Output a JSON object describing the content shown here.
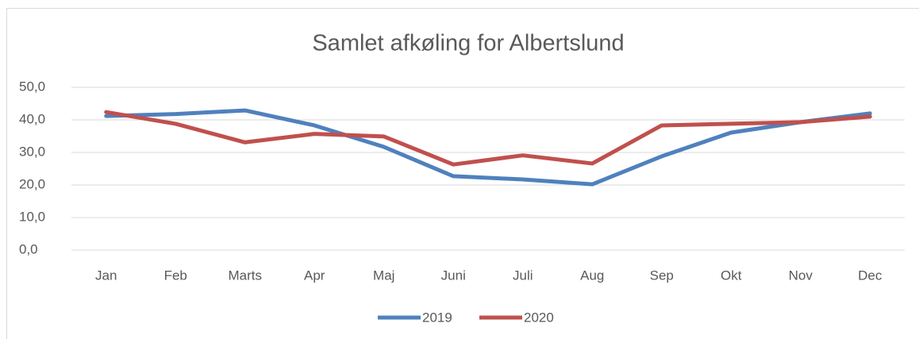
{
  "chart_data": {
    "type": "line",
    "title": "Samlet afkøling for Albertslund",
    "categories": [
      "Jan",
      "Feb",
      "Marts",
      "Apr",
      "Maj",
      "Juni",
      "Juli",
      "Aug",
      "Sep",
      "Okt",
      "Nov",
      "Dec"
    ],
    "series": [
      {
        "name": "2019",
        "color": "#4f81bd",
        "values": [
          41.2,
          41.8,
          42.9,
          38.3,
          31.7,
          22.7,
          21.7,
          20.2,
          28.8,
          36.1,
          39.3,
          42.0
        ]
      },
      {
        "name": "2020",
        "color": "#c0504d",
        "values": [
          42.4,
          38.8,
          33.1,
          35.7,
          34.9,
          26.3,
          29.1,
          26.6,
          38.3,
          38.8,
          39.3,
          41.0
        ]
      }
    ],
    "ylim": [
      0,
      50
    ],
    "yticks": [
      {
        "value": 0,
        "label": "0,0"
      },
      {
        "value": 10,
        "label": "10,0"
      },
      {
        "value": 20,
        "label": "20,0"
      },
      {
        "value": 30,
        "label": "30,0"
      },
      {
        "value": 40,
        "label": "40,0"
      },
      {
        "value": 50,
        "label": "50,0"
      }
    ],
    "grid": true,
    "legend": "bottom"
  }
}
